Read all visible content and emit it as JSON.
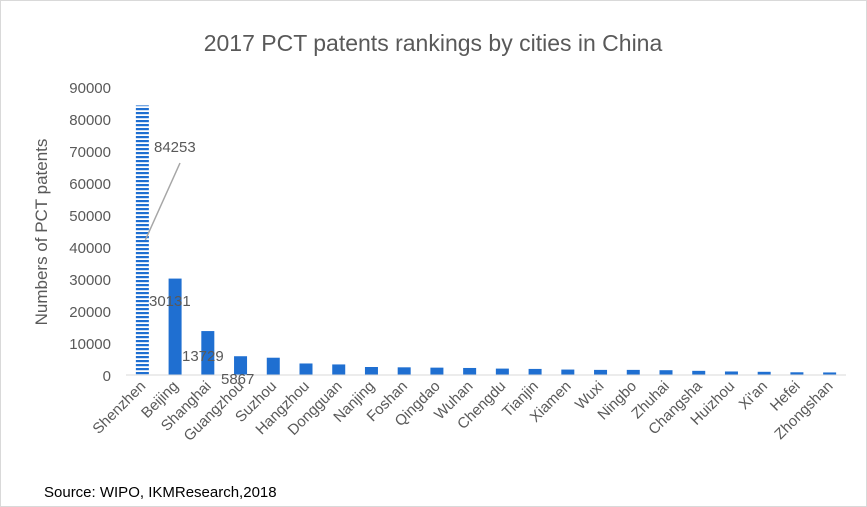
{
  "chart_data": {
    "type": "bar",
    "title": "2017 PCT patents rankings by cities in China",
    "xlabel": "",
    "ylabel": "Numbers of PCT patents",
    "ylim": [
      0,
      90000
    ],
    "yticks": [
      0,
      10000,
      20000,
      30000,
      40000,
      50000,
      60000,
      70000,
      80000,
      90000
    ],
    "grid": false,
    "legend": "none",
    "categories": [
      "Shenzhen",
      "Beijing",
      "Shanghai",
      "Guangzhou",
      "Suzhou",
      "Hangzhou",
      "Dongguan",
      "Nanjing",
      "Foshan",
      "Qingdao",
      "Wuhan",
      "Chengdu",
      "Tianjin",
      "Xiamen",
      "Wuxi",
      "Ningbo",
      "Zhuhai",
      "Changsha",
      "Huizhou",
      "Xi'an",
      "Hefei",
      "Zhongshan"
    ],
    "values": [
      84253,
      30131,
      13729,
      5867,
      5400,
      3600,
      3300,
      2500,
      2400,
      2300,
      2200,
      2000,
      1900,
      1700,
      1600,
      1600,
      1500,
      1300,
      1100,
      1000,
      850,
      800
    ],
    "data_labels": {
      "Shenzhen": "84253",
      "Beijing": "30131",
      "Shanghai": "13729",
      "Guangzhou": "5867"
    },
    "colors": {
      "bar": "#1f6fd1",
      "axis": "#d9d9d9",
      "text": "#595959",
      "title": "#595959"
    }
  },
  "footer": {
    "source": "Source: WIPO, IKMResearch,2018"
  }
}
